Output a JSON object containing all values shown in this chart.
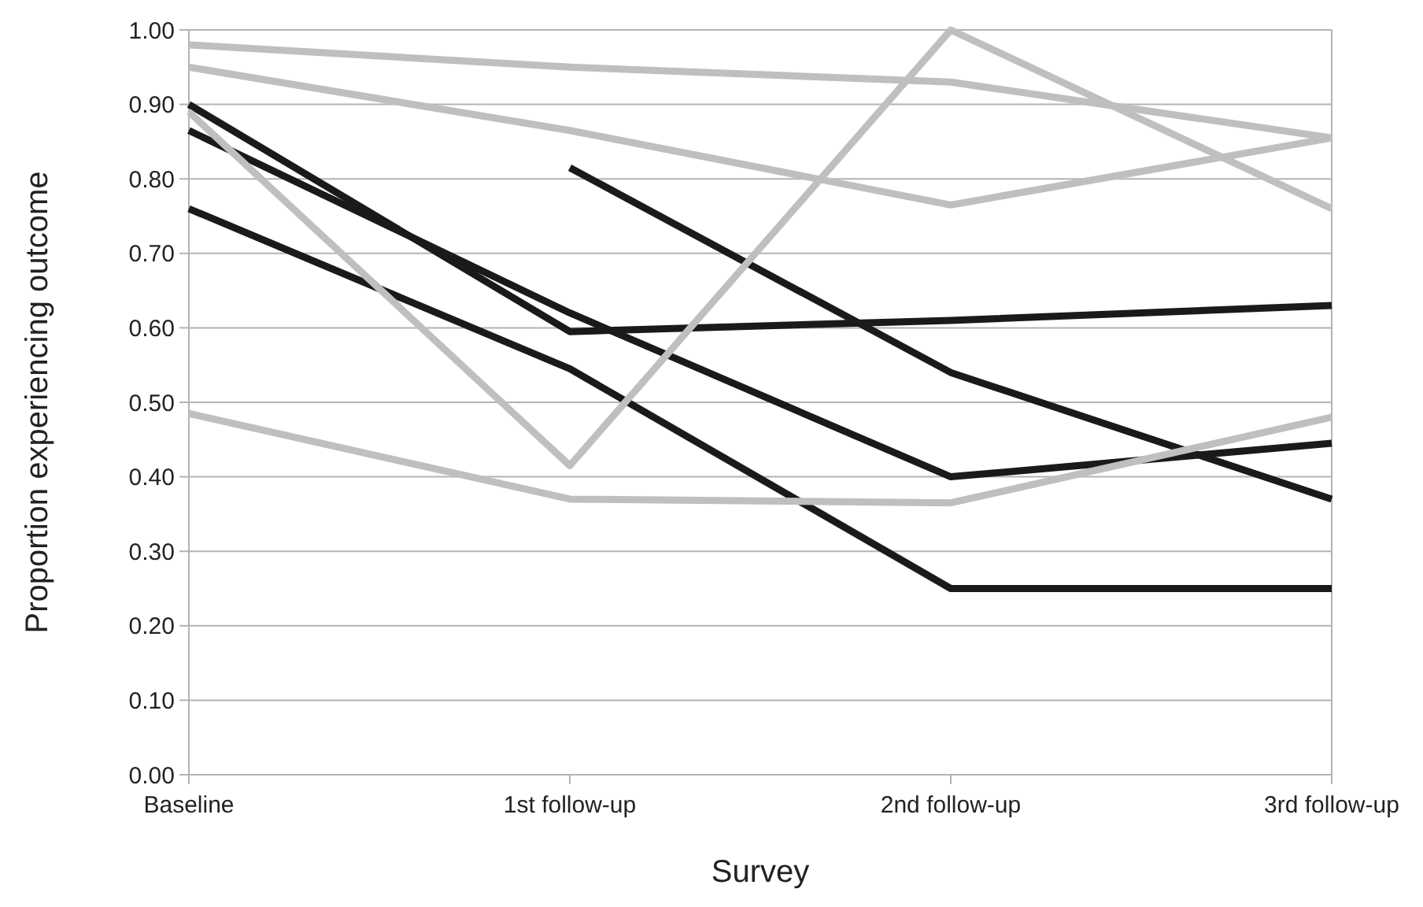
{
  "chart_data": {
    "type": "line",
    "xlabel": "Survey",
    "ylabel": "Proportion experiencing outcome",
    "categories": [
      "Baseline",
      "1st follow-up",
      "2nd follow-up",
      "3rd follow-up"
    ],
    "series": [
      {
        "color": "#1a1a1a",
        "values": [
          0.9,
          0.595,
          0.61,
          0.63
        ]
      },
      {
        "color": "#1a1a1a",
        "values": [
          0.865,
          0.62,
          0.4,
          0.445
        ]
      },
      {
        "color": "#1a1a1a",
        "values": [
          0.76,
          0.545,
          0.25,
          0.25
        ]
      },
      {
        "color": "#1a1a1a",
        "values": [
          null,
          0.815,
          0.54,
          0.37
        ]
      },
      {
        "color": "#bfbfbf",
        "values": [
          0.98,
          0.95,
          0.93,
          0.855
        ]
      },
      {
        "color": "#bfbfbf",
        "values": [
          0.95,
          0.865,
          0.765,
          0.855
        ]
      },
      {
        "color": "#bfbfbf",
        "values": [
          0.89,
          0.415,
          1.0,
          0.76
        ]
      },
      {
        "color": "#bfbfbf",
        "values": [
          0.485,
          0.37,
          0.365,
          0.48
        ]
      }
    ],
    "ylim": [
      0,
      1
    ],
    "yticks": [
      {
        "value": 0,
        "label": "0.00"
      },
      {
        "value": 0.1,
        "label": "0.10"
      },
      {
        "value": 0.2,
        "label": "0.20"
      },
      {
        "value": 0.3,
        "label": "0.30"
      },
      {
        "value": 0.4,
        "label": "0.40"
      },
      {
        "value": 0.5,
        "label": "0.50"
      },
      {
        "value": 0.6,
        "label": "0.60"
      },
      {
        "value": 0.7,
        "label": "0.70"
      },
      {
        "value": 0.8,
        "label": "0.80"
      },
      {
        "value": 0.9,
        "label": "0.90"
      },
      {
        "value": 1,
        "label": "1.00"
      }
    ],
    "grid": "y",
    "marker": "none",
    "line_style": "solid"
  }
}
